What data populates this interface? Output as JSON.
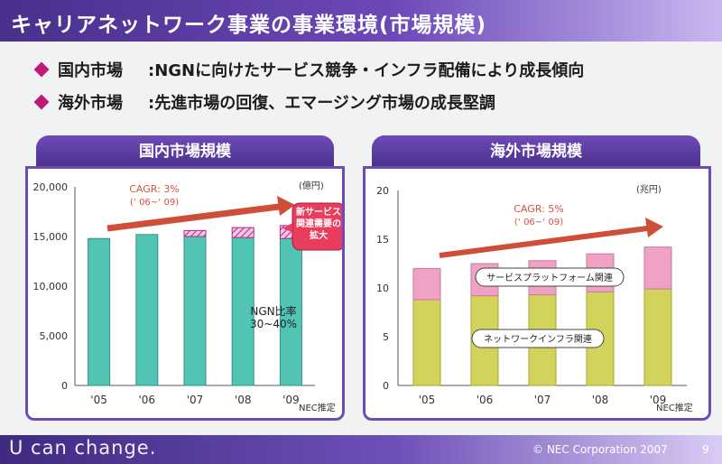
{
  "header": {
    "title": "キャリアネットワーク事業の事業環境(市場規模)"
  },
  "bullets": [
    {
      "label": "国内市場",
      "text": ":NGNに向けたサービス競争・インフラ配備により成長傾向"
    },
    {
      "label": "海外市場",
      "text": ":先進市場の回復、エマージング市場の成長堅調"
    }
  ],
  "footer": {
    "tagline": "U can change.",
    "copyright": "© NEC Corporation 2007",
    "page": "9"
  },
  "colors": {
    "brand_purple": "#5a3aa6",
    "teal": "#52c4b4",
    "olive": "#d2d35a",
    "pink": "#f0a2c4",
    "arrow": "#d9513c"
  },
  "chart_data": [
    {
      "type": "bar",
      "title": "国内市場規模",
      "unit": "(億円)",
      "categories": [
        "'05",
        "'06",
        "'07",
        "'08",
        "'09"
      ],
      "yticks": [
        "20,000",
        "15,000",
        "10,000",
        "5,000",
        "0"
      ],
      "ylim": [
        0,
        20000
      ],
      "series": [
        {
          "values": [
            14800,
            15200,
            15000,
            14900,
            14800
          ]
        },
        {
          "values": [
            0,
            0,
            600,
            1000,
            1300
          ]
        }
      ],
      "annotations": {
        "cagr": "CAGR: 3%",
        "cagr_period": "(‘ 06~‘ 09)",
        "callout": [
          "新サービス",
          "関連需要の",
          "拡大"
        ],
        "ngn": [
          "NGN比率",
          "30~40%"
        ],
        "source": "NEC推定"
      }
    },
    {
      "type": "bar",
      "title": "海外市場規模",
      "unit": "(兆円)",
      "categories": [
        "'05",
        "'06",
        "'07",
        "'08",
        "'09"
      ],
      "yticks": [
        "20",
        "15",
        "10",
        "5",
        "0"
      ],
      "ylim": [
        0,
        20
      ],
      "series": [
        {
          "name": "ネットワークインフラ関連",
          "values": [
            8.8,
            9.2,
            9.3,
            9.6,
            9.9
          ]
        },
        {
          "name": "サービスプラットフォーム関連",
          "values": [
            3.2,
            3.3,
            3.5,
            3.9,
            4.3
          ]
        }
      ],
      "annotations": {
        "cagr": "CAGR: 5%",
        "cagr_period": "(‘ 06~‘ 09)",
        "source": "NEC推定"
      }
    }
  ]
}
